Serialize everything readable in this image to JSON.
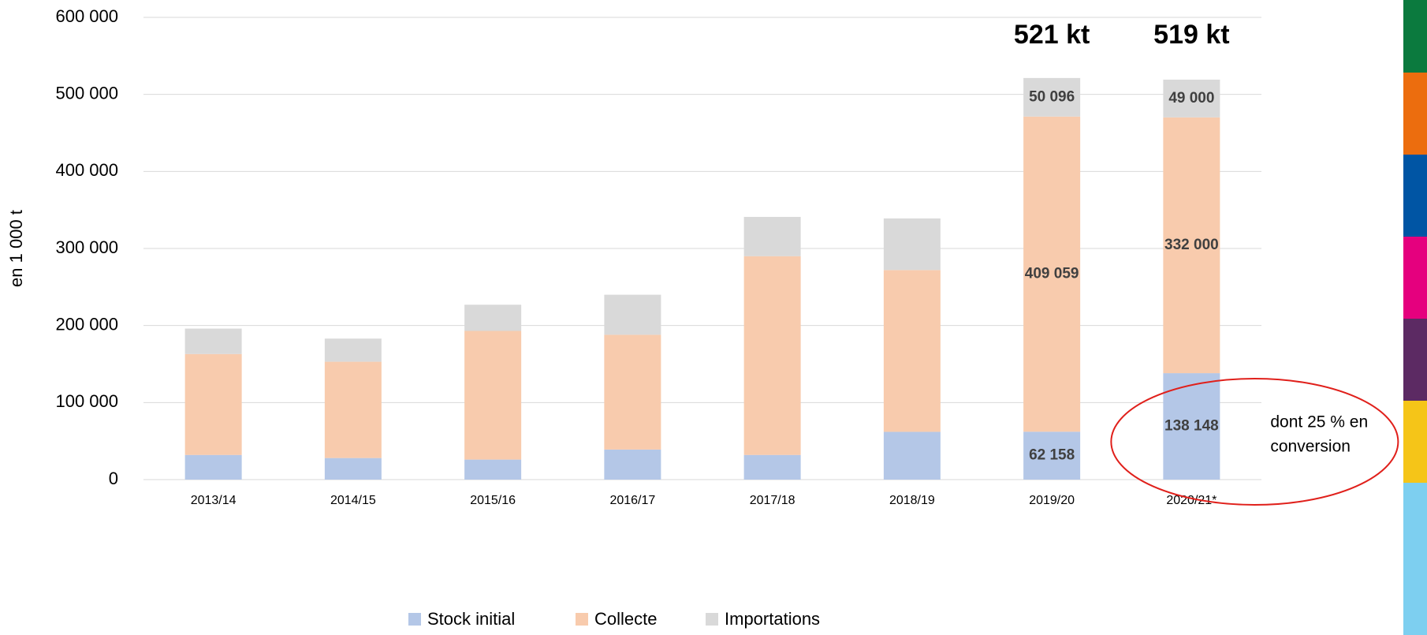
{
  "chart_data": {
    "type": "stacked_bar",
    "y_axis_label": "en 1 000 t",
    "categories": [
      "2013/14",
      "2014/15",
      "2015/16",
      "2016/17",
      "2017/18",
      "2018/19",
      "2019/20",
      "2020/21*"
    ],
    "series": [
      {
        "name": "Stock initial",
        "color": "#b4c7e7",
        "values": [
          32000,
          28000,
          26000,
          39000,
          32000,
          62000,
          62158,
          138148
        ],
        "value_labels": [
          null,
          null,
          null,
          null,
          null,
          null,
          "62 158",
          "138 148"
        ]
      },
      {
        "name": "Collecte",
        "color": "#f8cbad",
        "values": [
          131000,
          125000,
          167000,
          149000,
          258000,
          210000,
          409059,
          332000
        ],
        "value_labels": [
          null,
          null,
          null,
          null,
          null,
          null,
          "409 059",
          "332 000"
        ]
      },
      {
        "name": "Importations",
        "color": "#d9d9d9",
        "values": [
          33000,
          30000,
          34000,
          52000,
          51000,
          67000,
          50096,
          49000
        ],
        "value_labels": [
          null,
          null,
          null,
          null,
          null,
          null,
          "50 096",
          "49 000"
        ]
      }
    ],
    "ylim": [
      0,
      600000
    ],
    "yticks": [
      0,
      {
        "value": 100000,
        "label": "100 000"
      },
      {
        "value": 200000,
        "label": "200 000"
      },
      {
        "value": 300000,
        "label": "300 000"
      },
      {
        "value": 400000,
        "label": "400 000"
      },
      {
        "value": 500000,
        "label": "500 000"
      },
      {
        "value": 600000,
        "label": "600 000"
      }
    ],
    "grid": true,
    "legend": "bottom",
    "annotations": [
      {
        "text": "521 kt",
        "category": "2019/20"
      },
      {
        "text": "519 kt",
        "category": "2020/21*"
      }
    ],
    "note": {
      "lines": [
        "dont 25 % en",
        "conversion"
      ],
      "category": "2020/21*",
      "color": "#e0201b"
    }
  }
}
